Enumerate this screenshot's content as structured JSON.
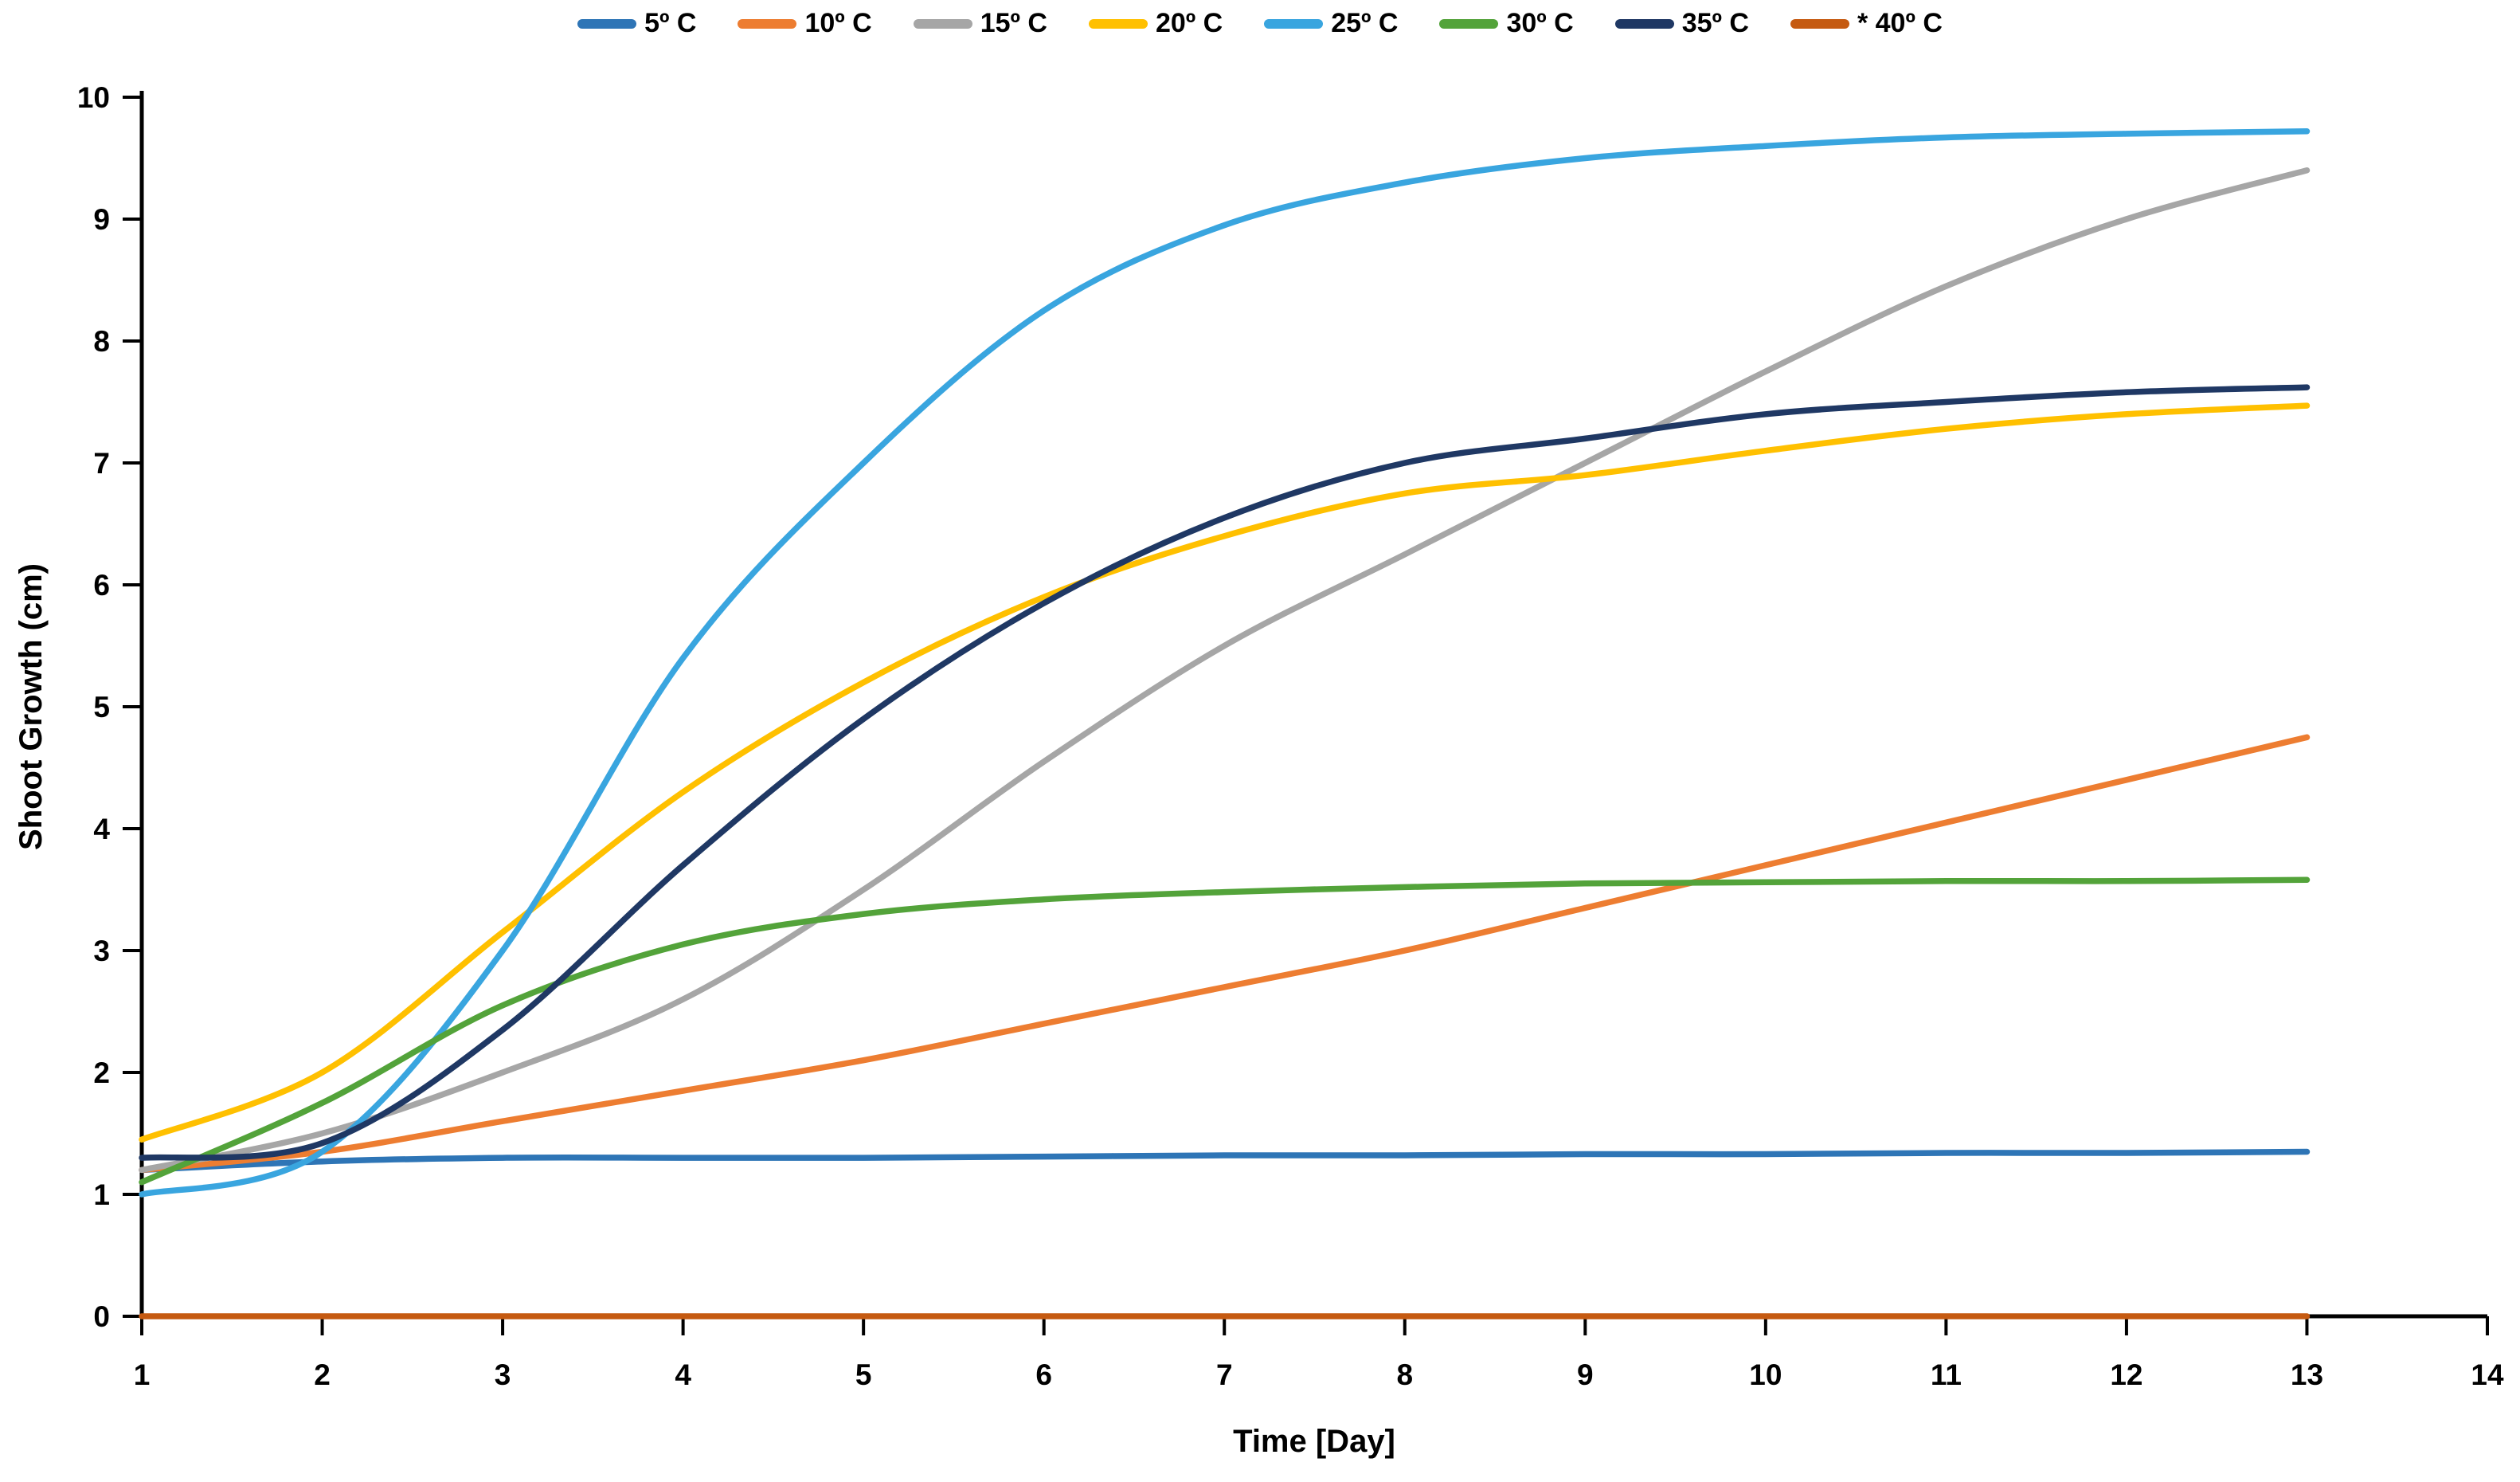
{
  "chart_data": {
    "type": "line",
    "title": "",
    "xlabel": "Time [Day]",
    "ylabel": "Shoot Growth (cm)",
    "x": [
      1,
      2,
      3,
      4,
      5,
      6,
      7,
      8,
      9,
      10,
      11,
      12,
      13
    ],
    "xlim": [
      1,
      14
    ],
    "ylim": [
      0,
      10
    ],
    "x_ticks": [
      1,
      2,
      3,
      4,
      5,
      6,
      7,
      8,
      9,
      10,
      11,
      12,
      13,
      14
    ],
    "y_ticks": [
      0,
      1,
      2,
      3,
      4,
      5,
      6,
      7,
      8,
      9,
      10
    ],
    "grid": false,
    "legend_position": "top-center",
    "axis_color": "#000000",
    "series": [
      {
        "name": "5º C",
        "color": "#2E75B6",
        "values": [
          1.2,
          1.27,
          1.3,
          1.3,
          1.3,
          1.31,
          1.32,
          1.32,
          1.33,
          1.33,
          1.34,
          1.34,
          1.35
        ]
      },
      {
        "name": "10º C",
        "color": "#ED7D31",
        "values": [
          1.2,
          1.35,
          1.6,
          1.85,
          2.1,
          2.4,
          2.7,
          3.0,
          3.35,
          3.7,
          4.05,
          4.4,
          4.75
        ]
      },
      {
        "name": "15º C",
        "color": "#A6A6A6",
        "values": [
          1.2,
          1.5,
          2.0,
          2.6,
          3.5,
          4.55,
          5.5,
          6.25,
          7.0,
          7.75,
          8.45,
          9.0,
          9.4
        ]
      },
      {
        "name": "20º C",
        "color": "#FFC000",
        "values": [
          1.45,
          2.0,
          3.15,
          4.3,
          5.2,
          5.9,
          6.4,
          6.75,
          6.9,
          7.1,
          7.28,
          7.4,
          7.47
        ]
      },
      {
        "name": "25º C",
        "color": "#39A5DF",
        "values": [
          1.0,
          1.35,
          3.0,
          5.4,
          7.0,
          8.25,
          8.95,
          9.3,
          9.5,
          9.6,
          9.67,
          9.7,
          9.72
        ]
      },
      {
        "name": "30º C",
        "color": "#53A33A",
        "values": [
          1.1,
          1.75,
          2.55,
          3.05,
          3.3,
          3.42,
          3.48,
          3.52,
          3.55,
          3.56,
          3.57,
          3.57,
          3.58
        ]
      },
      {
        "name": "35º C",
        "color": "#1F3864",
        "values": [
          1.3,
          1.42,
          2.35,
          3.7,
          4.9,
          5.85,
          6.55,
          7.0,
          7.2,
          7.4,
          7.5,
          7.58,
          7.62
        ]
      },
      {
        "name": "* 40º C",
        "color": "#C55A11",
        "values": [
          0,
          0,
          0,
          0,
          0,
          0,
          0,
          0,
          0,
          0,
          0,
          0,
          0
        ]
      }
    ]
  }
}
